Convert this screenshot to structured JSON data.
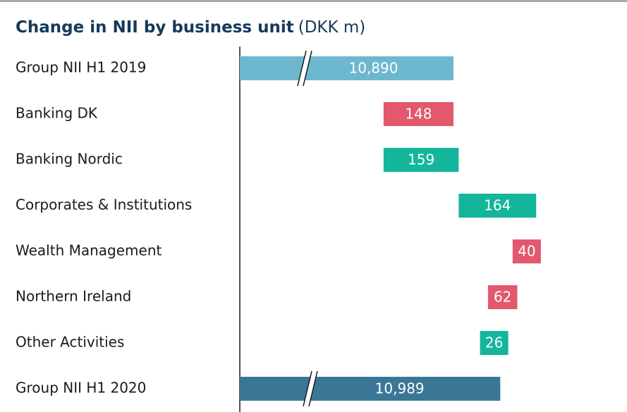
{
  "chart_data": {
    "type": "waterfall",
    "title": "Change in NII by business unit",
    "subtitle": "(DKK m)",
    "categories": [
      "Group NII H1 2019",
      "Banking DK",
      "Banking Nordic",
      "Corporates & Institutions",
      "Wealth Management",
      "Northern Ireland",
      "Other Activities",
      "Group NII H1 2020"
    ],
    "values": [
      10890,
      -148,
      159,
      164,
      -40,
      -62,
      26,
      10989
    ],
    "value_labels": [
      "10,890",
      "148",
      "159",
      "164",
      "40",
      "62",
      "26",
      "10,989"
    ],
    "color_start": "#6db8ce",
    "color_end": "#3a7797",
    "color_increase": "#13b69a",
    "color_decrease": "#e2586d",
    "axis_break": true
  }
}
